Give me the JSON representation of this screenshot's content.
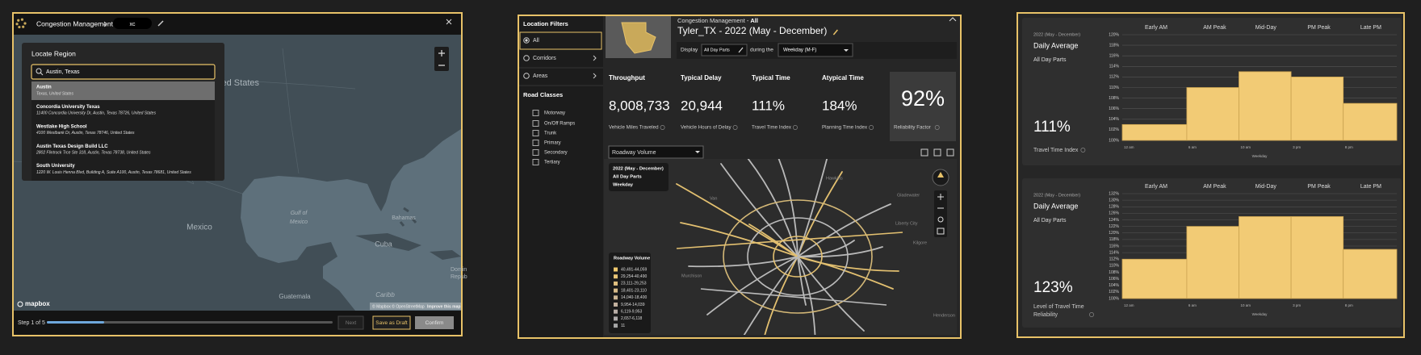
{
  "map_panel": {
    "header": "Congestion Management",
    "breadcrumb": "xc",
    "locate_title": "Locate Region",
    "search": "Austin, Texas",
    "results": [
      {
        "name": "Austin",
        "address": "Texas, United States"
      },
      {
        "name": "Concordia University Texas",
        "address": "11400 Concordia University Dr, Austin, Texas 78726, United States"
      },
      {
        "name": "Westlake High School",
        "address": "4100 Westbank Dr, Austin, Texas 78746, United States"
      },
      {
        "name": "Austin Texas Design Build LLC",
        "address": "2802 Flintrock Trce Ste 318, Austin, Texas 78738, United States"
      },
      {
        "name": "South University",
        "address": "1220 W. Louis Henna Blvd, Building A, Suite A100, Austin, Texas 78681, United States"
      }
    ],
    "map_labels": [
      "United States",
      "Gulf of",
      "Mexico",
      "Mexico",
      "Cuba",
      "Bahamas",
      "Guatemala",
      "Caribb",
      "Domin",
      "Repub"
    ],
    "logo": "mapbox",
    "attribution": "© Mapbox © OpenStreetMap",
    "improve": "Improve this map",
    "step": "Step 1 of 5",
    "buttons": [
      "Next",
      "Save as Draft",
      "Confirm"
    ]
  },
  "dashboard": {
    "sidebar_title": "Location Filters",
    "filters": [
      "All",
      "Corridors",
      "Areas"
    ],
    "road_classes_title": "Road Classes",
    "road_classes": [
      "Motorway",
      "On/Off Ramps",
      "Trunk",
      "Primary",
      "Secondary",
      "Tertiary"
    ],
    "breadcrumb": "Congestion Management - ",
    "breadcrumb_bold": "All",
    "title": "Tyler_TX - 2022 (May - December)",
    "display": "Display",
    "day_parts": "All Day Parts",
    "during": "during the",
    "weekday": "Weekday (M-F)",
    "metrics": [
      {
        "title": "Throughput",
        "value": "8,008,733",
        "label": "Vehicle Miles Traveled"
      },
      {
        "title": "Typical Delay",
        "value": "20,944",
        "label": "Vehicle Hours of Delay"
      },
      {
        "title": "Typical Time",
        "value": "111%",
        "label": "Travel Time Index"
      },
      {
        "title": "Atypical Time",
        "value": "184%",
        "label": "Planning Time Index"
      }
    ],
    "reliability": {
      "value": "92%",
      "label": "Reliability Factor"
    },
    "layer": "Roadway Volume",
    "overlay": [
      "2022 (May - December)",
      "All Day Parts",
      "Weekday"
    ],
    "legend_title": "Roadway Volume",
    "legend": [
      {
        "label": "40,491-44,059",
        "color": "#f0c96e"
      },
      {
        "label": "29,254-40,490",
        "color": "#e9c476"
      },
      {
        "label": "23,111-29,253",
        "color": "#e0bf7f"
      },
      {
        "label": "18,401-23,110",
        "color": "#d6ba89"
      },
      {
        "label": "14,040-18,400",
        "color": "#ccb594"
      },
      {
        "label": "9,954-14,039",
        "color": "#c1b09e"
      },
      {
        "label": "6,119-9,953",
        "color": "#b7aca6"
      },
      {
        "label": "2,657-6,118",
        "color": "#aeaaaa"
      },
      {
        "label": "11",
        "color": "#a6a6a6"
      }
    ],
    "places": [
      "Hawkins",
      "Gladewater",
      "Van",
      "Liberty City",
      "Kilgore",
      "Murchison",
      "Henderson"
    ]
  },
  "insight_cards": [
    {
      "period": "2022 (May - December)",
      "heading": "Daily Average",
      "day_parts": "All Day Parts",
      "value": "111%",
      "label": "Travel Time Index"
    },
    {
      "period": "2022 (May - December)",
      "heading": "Daily Average",
      "day_parts": "All Day Parts",
      "value": "123%",
      "label": "Level of Travel Time Reliability"
    }
  ],
  "chart_data": [
    {
      "type": "bar",
      "categories": [
        "Early AM",
        "AM Peak",
        "Mid-Day",
        "PM Peak",
        "Late PM"
      ],
      "values": [
        103,
        110,
        113,
        112,
        107
      ],
      "color": "#f2cb75",
      "ylim": [
        100,
        120
      ],
      "yticks": [
        {
          "value": 100,
          "label": "100%"
        },
        {
          "value": 102,
          "label": "102%"
        },
        {
          "value": 104,
          "label": "104%"
        },
        {
          "value": 106,
          "label": "106%"
        },
        {
          "value": 108,
          "label": "108%"
        },
        {
          "value": 110,
          "label": "110%"
        },
        {
          "value": 112,
          "label": "112%"
        },
        {
          "value": 114,
          "label": "114%"
        },
        {
          "value": 116,
          "label": "116%"
        },
        {
          "value": 118,
          "label": "118%"
        },
        {
          "value": 120,
          "label": "120%"
        }
      ],
      "xticklabels": [
        "12 am",
        "6 am",
        "10 am",
        "3 pm",
        "8 pm"
      ],
      "xlabel": "Weekday",
      "grid": true
    },
    {
      "type": "bar",
      "categories": [
        "Early AM",
        "AM Peak",
        "Mid-Day",
        "PM Peak",
        "Late PM"
      ],
      "values": [
        112,
        122,
        125,
        125,
        115
      ],
      "color": "#f2cb75",
      "ylim": [
        100,
        132
      ],
      "yticks": [
        {
          "value": 100,
          "label": "100%"
        },
        {
          "value": 102,
          "label": "102%"
        },
        {
          "value": 104,
          "label": "104%"
        },
        {
          "value": 106,
          "label": "106%"
        },
        {
          "value": 108,
          "label": "108%"
        },
        {
          "value": 110,
          "label": "110%"
        },
        {
          "value": 112,
          "label": "112%"
        },
        {
          "value": 114,
          "label": "114%"
        },
        {
          "value": 116,
          "label": "116%"
        },
        {
          "value": 118,
          "label": "118%"
        },
        {
          "value": 120,
          "label": "120%"
        },
        {
          "value": 122,
          "label": "122%"
        },
        {
          "value": 124,
          "label": "124%"
        },
        {
          "value": 126,
          "label": "126%"
        },
        {
          "value": 128,
          "label": "128%"
        },
        {
          "value": 130,
          "label": "130%"
        },
        {
          "value": 132,
          "label": "132%"
        }
      ],
      "xticklabels": [
        "12 am",
        "6 am",
        "10 am",
        "3 pm",
        "8 pm"
      ],
      "xlabel": "Weekday",
      "grid": true
    }
  ]
}
